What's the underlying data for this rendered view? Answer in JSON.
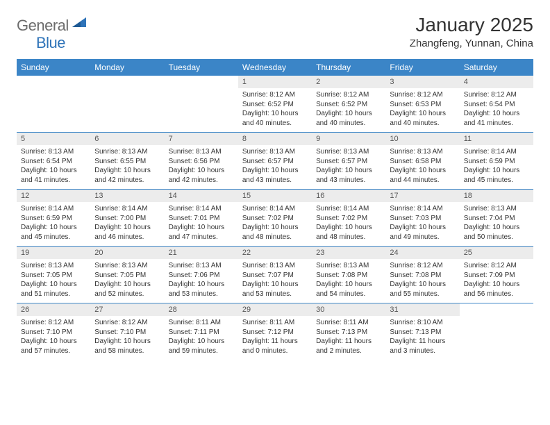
{
  "brand": {
    "part1": "General",
    "part2": "Blue"
  },
  "title": "January 2025",
  "location": "Zhangfeng, Yunnan, China",
  "colors": {
    "header_bg": "#3b85c7",
    "header_text": "#ffffff",
    "daynum_bg": "#ececec",
    "rule": "#3b85c7",
    "logo_gray": "#6b6b6b",
    "logo_blue": "#2e73b8"
  },
  "weekdays": [
    "Sunday",
    "Monday",
    "Tuesday",
    "Wednesday",
    "Thursday",
    "Friday",
    "Saturday"
  ],
  "weeks": [
    [
      {
        "blank": true
      },
      {
        "blank": true
      },
      {
        "blank": true
      },
      {
        "n": "1",
        "sr": "8:12 AM",
        "ss": "6:52 PM",
        "dl": "10 hours and 40 minutes."
      },
      {
        "n": "2",
        "sr": "8:12 AM",
        "ss": "6:52 PM",
        "dl": "10 hours and 40 minutes."
      },
      {
        "n": "3",
        "sr": "8:12 AM",
        "ss": "6:53 PM",
        "dl": "10 hours and 40 minutes."
      },
      {
        "n": "4",
        "sr": "8:12 AM",
        "ss": "6:54 PM",
        "dl": "10 hours and 41 minutes."
      }
    ],
    [
      {
        "n": "5",
        "sr": "8:13 AM",
        "ss": "6:54 PM",
        "dl": "10 hours and 41 minutes."
      },
      {
        "n": "6",
        "sr": "8:13 AM",
        "ss": "6:55 PM",
        "dl": "10 hours and 42 minutes."
      },
      {
        "n": "7",
        "sr": "8:13 AM",
        "ss": "6:56 PM",
        "dl": "10 hours and 42 minutes."
      },
      {
        "n": "8",
        "sr": "8:13 AM",
        "ss": "6:57 PM",
        "dl": "10 hours and 43 minutes."
      },
      {
        "n": "9",
        "sr": "8:13 AM",
        "ss": "6:57 PM",
        "dl": "10 hours and 43 minutes."
      },
      {
        "n": "10",
        "sr": "8:13 AM",
        "ss": "6:58 PM",
        "dl": "10 hours and 44 minutes."
      },
      {
        "n": "11",
        "sr": "8:14 AM",
        "ss": "6:59 PM",
        "dl": "10 hours and 45 minutes."
      }
    ],
    [
      {
        "n": "12",
        "sr": "8:14 AM",
        "ss": "6:59 PM",
        "dl": "10 hours and 45 minutes."
      },
      {
        "n": "13",
        "sr": "8:14 AM",
        "ss": "7:00 PM",
        "dl": "10 hours and 46 minutes."
      },
      {
        "n": "14",
        "sr": "8:14 AM",
        "ss": "7:01 PM",
        "dl": "10 hours and 47 minutes."
      },
      {
        "n": "15",
        "sr": "8:14 AM",
        "ss": "7:02 PM",
        "dl": "10 hours and 48 minutes."
      },
      {
        "n": "16",
        "sr": "8:14 AM",
        "ss": "7:02 PM",
        "dl": "10 hours and 48 minutes."
      },
      {
        "n": "17",
        "sr": "8:14 AM",
        "ss": "7:03 PM",
        "dl": "10 hours and 49 minutes."
      },
      {
        "n": "18",
        "sr": "8:13 AM",
        "ss": "7:04 PM",
        "dl": "10 hours and 50 minutes."
      }
    ],
    [
      {
        "n": "19",
        "sr": "8:13 AM",
        "ss": "7:05 PM",
        "dl": "10 hours and 51 minutes."
      },
      {
        "n": "20",
        "sr": "8:13 AM",
        "ss": "7:05 PM",
        "dl": "10 hours and 52 minutes."
      },
      {
        "n": "21",
        "sr": "8:13 AM",
        "ss": "7:06 PM",
        "dl": "10 hours and 53 minutes."
      },
      {
        "n": "22",
        "sr": "8:13 AM",
        "ss": "7:07 PM",
        "dl": "10 hours and 53 minutes."
      },
      {
        "n": "23",
        "sr": "8:13 AM",
        "ss": "7:08 PM",
        "dl": "10 hours and 54 minutes."
      },
      {
        "n": "24",
        "sr": "8:12 AM",
        "ss": "7:08 PM",
        "dl": "10 hours and 55 minutes."
      },
      {
        "n": "25",
        "sr": "8:12 AM",
        "ss": "7:09 PM",
        "dl": "10 hours and 56 minutes."
      }
    ],
    [
      {
        "n": "26",
        "sr": "8:12 AM",
        "ss": "7:10 PM",
        "dl": "10 hours and 57 minutes."
      },
      {
        "n": "27",
        "sr": "8:12 AM",
        "ss": "7:10 PM",
        "dl": "10 hours and 58 minutes."
      },
      {
        "n": "28",
        "sr": "8:11 AM",
        "ss": "7:11 PM",
        "dl": "10 hours and 59 minutes."
      },
      {
        "n": "29",
        "sr": "8:11 AM",
        "ss": "7:12 PM",
        "dl": "11 hours and 0 minutes."
      },
      {
        "n": "30",
        "sr": "8:11 AM",
        "ss": "7:13 PM",
        "dl": "11 hours and 2 minutes."
      },
      {
        "n": "31",
        "sr": "8:10 AM",
        "ss": "7:13 PM",
        "dl": "11 hours and 3 minutes."
      },
      {
        "blank": true
      }
    ]
  ],
  "labels": {
    "sunrise": "Sunrise: ",
    "sunset": "Sunset: ",
    "daylight": "Daylight: "
  }
}
